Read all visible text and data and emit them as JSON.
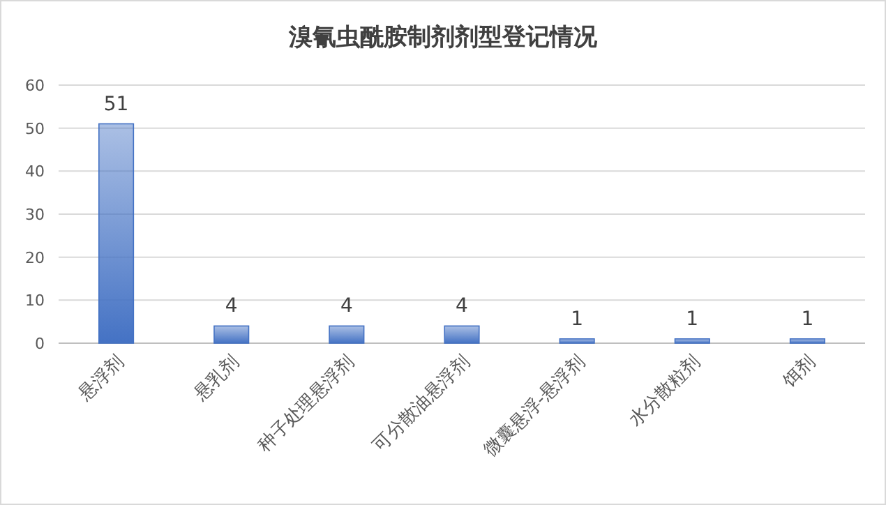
{
  "chart_data": {
    "type": "bar",
    "title": "溴氰虫酰胺制剂剂型登记情况",
    "categories": [
      "悬浮剂",
      "悬乳剂",
      "种子处理悬浮剂",
      "可分散油悬浮剂",
      "微囊悬浮-悬浮剂",
      "水分散粒剂",
      "饵剂"
    ],
    "values": [
      51,
      4,
      4,
      4,
      1,
      1,
      1
    ],
    "color": "#4472c4",
    "ylim": [
      0,
      60
    ],
    "yticks": [
      0,
      10,
      20,
      30,
      40,
      50,
      60
    ],
    "grid": "y",
    "data_labels": true
  }
}
